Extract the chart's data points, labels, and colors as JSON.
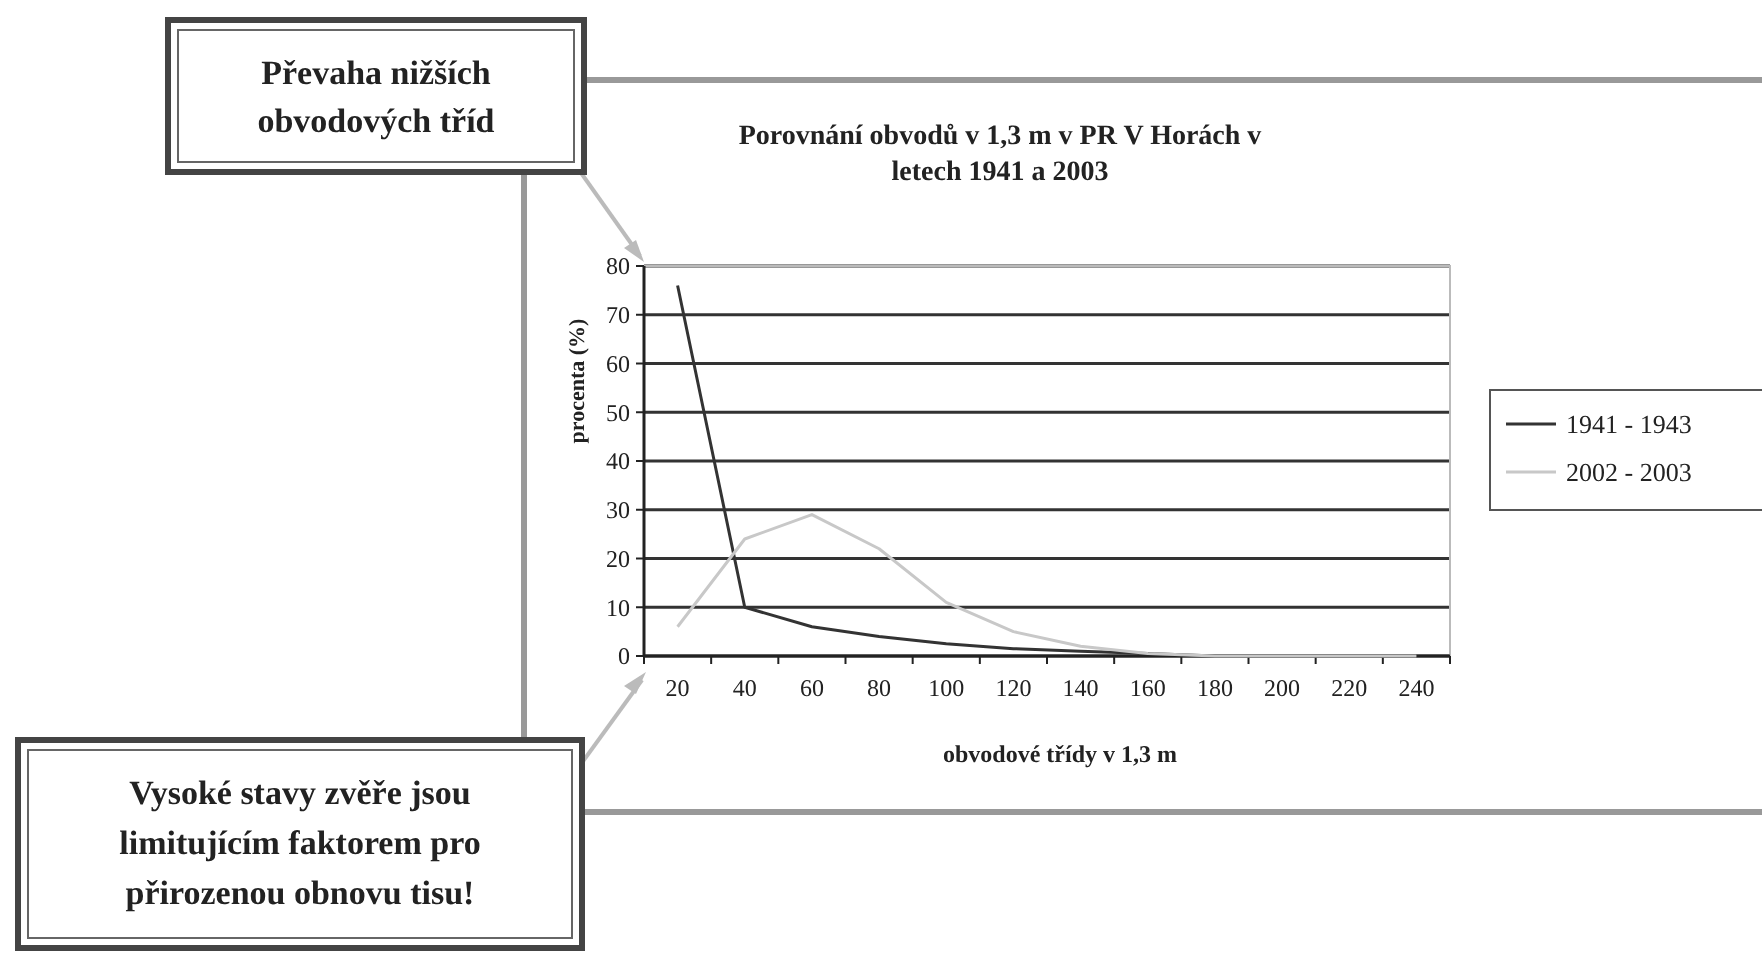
{
  "chart_data": {
    "type": "line",
    "title": "Porovnání obvodů v 1,3 m v PR V Horách v letech 1941 a 2003",
    "xlabel": "obvodové třídy v 1,3 m",
    "ylabel": "procenta (%)",
    "categories": [
      "20",
      "40",
      "60",
      "80",
      "100",
      "120",
      "140",
      "160",
      "180",
      "200",
      "220",
      "240"
    ],
    "series": [
      {
        "name": "1941 - 1943",
        "color": "#333333",
        "values": [
          76,
          10,
          6,
          4,
          2.5,
          1.5,
          1,
          0.5,
          0,
          0,
          0,
          0
        ]
      },
      {
        "name": "2002 - 2003",
        "color": "#c8c8c8",
        "values": [
          6,
          24,
          29,
          22,
          11,
          5,
          2,
          0.5,
          0,
          0,
          0,
          0
        ]
      }
    ],
    "ylim": [
      0,
      80
    ],
    "yticks": [
      0,
      10,
      20,
      30,
      40,
      50,
      60,
      70,
      80
    ],
    "grid": "y",
    "legend": "right",
    "marker": "none",
    "line_style": "solid",
    "annotations": [
      "Převaha nižších obvodových tříd",
      "Vysoké stavy zvěře jsou limitujícím faktorem pro přirozenou obnovu tisu!"
    ]
  }
}
